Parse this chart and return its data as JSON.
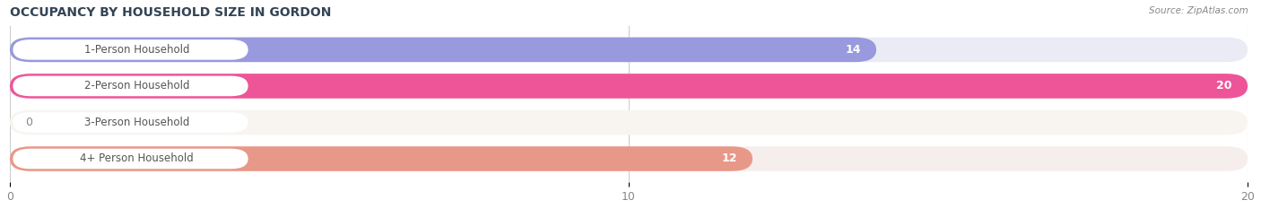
{
  "title": "OCCUPANCY BY HOUSEHOLD SIZE IN GORDON",
  "source": "Source: ZipAtlas.com",
  "categories": [
    "1-Person Household",
    "2-Person Household",
    "3-Person Household",
    "4+ Person Household"
  ],
  "values": [
    14,
    20,
    0,
    12
  ],
  "bar_colors": [
    "#9999DD",
    "#EE5599",
    "#F5C89A",
    "#E89888"
  ],
  "bg_colors": [
    "#EBEBF5",
    "#F5E8EE",
    "#F8F5F0",
    "#F5EEEC"
  ],
  "xlim": [
    0,
    20
  ],
  "xticks": [
    0,
    10,
    20
  ],
  "value_labels": [
    "14",
    "20",
    "0",
    "12"
  ],
  "label_inside": [
    true,
    true,
    false,
    true
  ],
  "figsize": [
    14.06,
    2.33
  ],
  "dpi": 100,
  "bg_color": "#FFFFFF",
  "label_pill_color": "#FFFFFF",
  "label_text_color": "#555555",
  "value_text_color_inside": "#FFFFFF",
  "value_text_color_outside": "#888888"
}
